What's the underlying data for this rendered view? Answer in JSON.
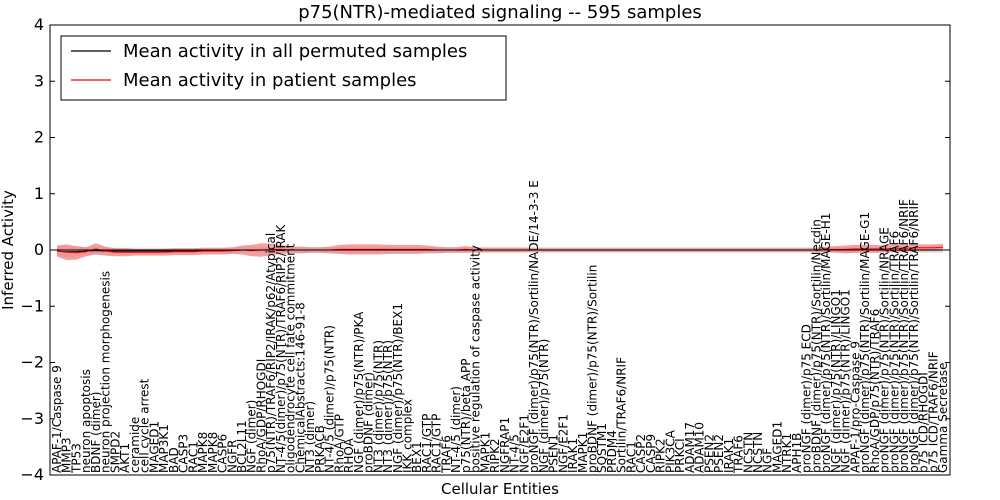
{
  "chart_data": {
    "type": "line",
    "title": "p75(NTR)-mediated signaling -- 595 samples",
    "xlabel": "Cellular Entities",
    "ylabel": "Inferred Activity",
    "ylim": [
      -4,
      4
    ],
    "yticks": [
      -4,
      -3,
      -2,
      -1,
      0,
      1,
      2,
      3,
      4
    ],
    "legend": {
      "position": "top-left",
      "entries": [
        {
          "label": "Mean activity in all permuted samples",
          "color": "#000000"
        },
        {
          "label": "Mean activity in patient samples",
          "color": "#ff0000"
        }
      ]
    },
    "colors": {
      "patient_line": "#ff0000",
      "patient_band": "#f08080",
      "permuted_line": "#000000",
      "permuted_band": "#c8c8c8",
      "axis": "#000000"
    },
    "categories": [
      "APAF-1/Caspase 9",
      "MMP3",
      "TP53",
      "neuron apoptosis",
      "BDNF (dimer)",
      "neuron projection morphogenesis",
      "SMPD2",
      "AKT1",
      "ceramide",
      "cell cycle arrest",
      "MAGED1",
      "MAP3K1",
      "BAD",
      "CASP3",
      "RAC1",
      "MAPK8",
      "MAPK8",
      "CASP6",
      "NGFR",
      "BCL2L11",
      "NGF (dimer)",
      "RhoA/GDP/RHOGDI",
      "p75(NTR)/TRAF6/RIP2/IRAK/p62/Atypical",
      "NT-4/5(dimer)/p75(NTR)/TRAF6/RIP2/IRAK",
      "oligodendrocyte cell fate commitment",
      "ChemicalAbstracts:146-91-8",
      "NT3 (dimer)",
      "PRKACB",
      "NT-4/5 (dimer)/p75(NTR)",
      "RhoA/GTP",
      "RHOA",
      "NGF (dimer)/p75(NTR)/PKA",
      "proBDNF (dimer)",
      "NT3 (dimer)/p75(NTR)",
      "NT3 (dimer)/p75(NTR)",
      "NGF (dimer)/p75(NTR)/BEX1",
      "IKK complex",
      "BEX1",
      "RAC1/GTP",
      "RAC1/GTP",
      "TRAF6",
      "NT-4/5 (dimer)",
      "p75(NTR)/beta APP",
      "positive regulation of caspase activity",
      "MAPK1",
      "RIPK2",
      "NGFRAP1",
      "NT-4/5",
      "NGF/E2F1",
      "proNGF (dimer)/p75(NTR)/Sortilin/NADE/14-3-3 E",
      "NGF (dimer)/p75(NTR)",
      "PSEN1",
      "NGF/E2F1",
      "IRAK1",
      "MAPK1",
      "proBDNF (dimer)/p75(NTR)/Sortilin",
      "SQSTM1",
      "PRDM4",
      "Sortilin/TRAF6/NRIF",
      "RAC1",
      "CASP2",
      "CASP9",
      "RIPK2",
      "PIK3CA",
      "PRKCI",
      "ADAM17",
      "ADAM10",
      "PSEN2",
      "PSEN2",
      "IRAK1",
      "TRAF6",
      "NCSTN",
      "NCSTN",
      "NGF",
      "MAGED1",
      "NTRK1",
      "APH1B",
      "proNGF (dimer)/p75 ECD",
      "proBDNF (dimer)/p75(NTR)/Sortilin/Necdin",
      "proNGF (dimer)/p75(NTR)/Sortilin/MAGE-H1",
      "NGF (dimer)/p75(NTR)/LINGO1",
      "NGF (dimer)/p75(NTR)/LINGO1",
      "APAF-1/pro-Caspase 9",
      "proNGF (dimer)/p75(NTR)/Sortilin/MAGE-G1",
      "RhoA/GDP/p75(NTR)/TRAF6",
      "proNGF (dimer)/p75(NTR)/Sortilin/NRAGE",
      "proNGF (dimer)/p75(NTR)/Sortilin/TRAF6",
      "proNGF (dimer)/p75(NTR)/Sortilin/TRAF6/NRIF",
      "proNGF (dimer)/p75(NTR)/Sortilin/TRAF6/NRIF",
      "p75 ICD/RHOGDI",
      "p75 ICD/TRAF6/NRIF",
      "Gamma Secretase"
    ],
    "series": [
      {
        "name": "Mean activity in patient samples",
        "values": [
          -0.02,
          -0.04,
          -0.05,
          -0.03,
          0.02,
          -0.02,
          -0.04,
          -0.04,
          -0.04,
          -0.04,
          -0.04,
          -0.04,
          -0.03,
          -0.03,
          -0.03,
          -0.02,
          -0.02,
          -0.02,
          -0.01,
          0.0,
          -0.01,
          0.0,
          0.01,
          0.01,
          0.0,
          0.0,
          0.0,
          0.0,
          0.0,
          0.01,
          0.01,
          0.01,
          0.01,
          0.01,
          0.01,
          0.01,
          0.01,
          0.01,
          0.01,
          0.0,
          0.0,
          0.0,
          0.01,
          0.0,
          0.0,
          0.0,
          0.0,
          0.0,
          0.0,
          0.0,
          0.0,
          0.0,
          0.0,
          0.0,
          0.0,
          0.0,
          0.0,
          0.0,
          0.0,
          0.0,
          0.0,
          0.0,
          0.0,
          0.0,
          0.0,
          0.0,
          0.0,
          0.0,
          0.0,
          0.0,
          0.0,
          0.0,
          0.0,
          0.0,
          0.0,
          0.0,
          0.0,
          0.0,
          0.0,
          0.01,
          0.01,
          0.01,
          0.02,
          0.02,
          0.02,
          0.02,
          0.03,
          0.03,
          0.04,
          0.04,
          0.04,
          0.05
        ]
      },
      {
        "name": "Mean activity in all permuted samples",
        "values": [
          -0.02,
          -0.03,
          -0.03,
          -0.02,
          -0.01,
          -0.02,
          -0.02,
          -0.02,
          -0.02,
          -0.02,
          -0.02,
          -0.02,
          -0.02,
          -0.02,
          -0.02,
          -0.01,
          -0.01,
          -0.01,
          -0.01,
          0.0,
          0.0,
          0.0,
          0.0,
          0.0,
          0.0,
          0.0,
          0.0,
          0.0,
          0.0,
          0.0,
          0.0,
          0.0,
          0.0,
          0.0,
          0.0,
          0.0,
          0.0,
          0.0,
          0.0,
          0.0,
          0.0,
          0.0,
          0.0,
          0.0,
          0.0,
          0.0,
          0.0,
          0.0,
          0.0,
          0.0,
          0.0,
          0.0,
          0.0,
          0.0,
          0.0,
          0.0,
          0.0,
          0.0,
          0.0,
          0.0,
          0.0,
          0.0,
          0.0,
          0.0,
          0.0,
          0.0,
          0.0,
          0.0,
          0.0,
          0.0,
          0.0,
          0.0,
          0.0,
          0.0,
          0.0,
          0.0,
          0.0,
          0.0,
          0.0,
          0.0,
          0.0,
          0.0,
          0.0,
          0.0,
          0.0,
          0.0,
          0.0,
          0.0,
          0.0,
          0.0,
          0.0,
          0.0
        ]
      }
    ],
    "patient_spread": [
      0.1,
      0.14,
      0.12,
      0.08,
      0.1,
      0.08,
      0.07,
      0.07,
      0.06,
      0.06,
      0.06,
      0.06,
      0.06,
      0.06,
      0.06,
      0.06,
      0.06,
      0.06,
      0.06,
      0.08,
      0.1,
      0.12,
      0.1,
      0.08,
      0.06,
      0.06,
      0.05,
      0.05,
      0.06,
      0.08,
      0.09,
      0.09,
      0.09,
      0.09,
      0.08,
      0.08,
      0.08,
      0.08,
      0.07,
      0.06,
      0.05,
      0.05,
      0.06,
      0.05,
      0.04,
      0.04,
      0.04,
      0.04,
      0.04,
      0.03,
      0.03,
      0.03,
      0.03,
      0.03,
      0.03,
      0.03,
      0.03,
      0.03,
      0.03,
      0.03,
      0.03,
      0.03,
      0.03,
      0.03,
      0.03,
      0.03,
      0.03,
      0.03,
      0.03,
      0.03,
      0.03,
      0.03,
      0.03,
      0.03,
      0.03,
      0.03,
      0.03,
      0.03,
      0.04,
      0.05,
      0.06,
      0.07,
      0.07,
      0.07,
      0.07,
      0.06,
      0.06,
      0.06,
      0.06,
      0.06,
      0.06,
      0.06
    ],
    "permuted_spread": [
      0.08,
      0.1,
      0.09,
      0.07,
      0.07,
      0.06,
      0.06,
      0.06,
      0.05,
      0.05,
      0.05,
      0.05,
      0.05,
      0.05,
      0.05,
      0.05,
      0.05,
      0.05,
      0.05,
      0.05,
      0.05,
      0.05,
      0.05,
      0.05,
      0.05,
      0.05,
      0.05,
      0.05,
      0.05,
      0.05,
      0.05,
      0.05,
      0.05,
      0.05,
      0.05,
      0.05,
      0.05,
      0.05,
      0.05,
      0.05,
      0.05,
      0.05,
      0.05,
      0.05,
      0.05,
      0.05,
      0.05,
      0.05,
      0.05,
      0.05,
      0.05,
      0.05,
      0.05,
      0.05,
      0.05,
      0.05,
      0.05,
      0.05,
      0.05,
      0.05,
      0.05,
      0.05,
      0.05,
      0.05,
      0.05,
      0.05,
      0.05,
      0.05,
      0.05,
      0.05,
      0.05,
      0.05,
      0.05,
      0.05,
      0.05,
      0.05,
      0.05,
      0.05,
      0.05,
      0.05,
      0.05,
      0.05,
      0.05,
      0.05,
      0.05,
      0.05,
      0.05,
      0.05,
      0.05,
      0.05,
      0.05,
      0.05
    ]
  }
}
